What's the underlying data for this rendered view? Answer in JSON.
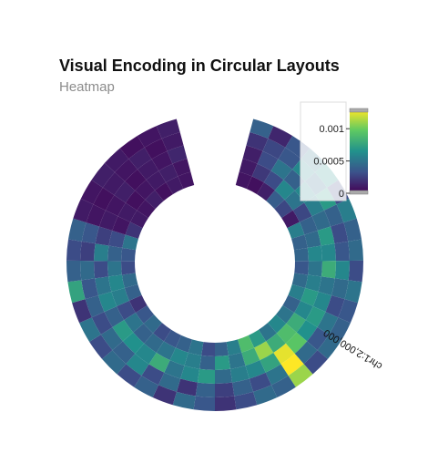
{
  "chart_data": {
    "type": "heatmap",
    "layout": "circular",
    "title": "Visual Encoding in Circular Layouts",
    "subtitle": "Heatmap",
    "axis_label": "chr1:2,000,000",
    "colormap": "viridis",
    "color_range": [
      0,
      0.0013
    ],
    "legend": {
      "placement": "top-right",
      "ticks": [
        {
          "value": 0,
          "label": "0"
        },
        {
          "value": 0.0005,
          "label": "0.0005"
        },
        {
          "value": 0.001,
          "label": "0.001"
        }
      ]
    },
    "start_deg": 15,
    "end_deg": 345,
    "angular_bins": 40,
    "rings": [
      [
        8e-05,
        6e-05,
        0.00012,
        0.00038,
        0.00028,
        0.0001,
        0.00055,
        0.0004,
        0.00042,
        0.00035,
        0.00045,
        0.00055,
        0.0004,
        0.0005,
        0.0006,
        0.0005,
        0.0007,
        0.0009,
        0.00055,
        0.0004,
        0.0003,
        0.0005,
        0.0004,
        0.00035,
        0.0003,
        0.00045,
        0.00035,
        0.0002,
        0.0004,
        0.00045,
        0.0003,
        0.00035,
        0.0005,
        0.0002,
        0.0001,
        8e-05,
        0.00012,
        6e-05,
        0.0001,
        8e-05
      ],
      [
        0.0001,
        0.00022,
        0.0003,
        0.0006,
        0.0005,
        0.00028,
        0.0004,
        0.00045,
        0.0006,
        0.0005,
        0.00055,
        0.0007,
        0.0006,
        0.0008,
        0.0009,
        0.0008,
        0.0011,
        0.0008,
        0.0005,
        0.0007,
        0.0004,
        0.00055,
        0.0006,
        0.0005,
        0.00045,
        0.0004,
        0.0005,
        0.0003,
        0.00055,
        0.0006,
        0.0005,
        0.0004,
        0.0003,
        8e-05,
        0.0001,
        6e-05,
        8e-05,
        0.0001,
        0.00012,
        8e-05
      ],
      [
        0.00012,
        0.0003,
        0.0005,
        0.0004,
        0.0006,
        0.00055,
        0.00045,
        0.0007,
        0.0006,
        0.0008,
        0.0005,
        0.0006,
        0.0007,
        0.00065,
        0.00095,
        0.00125,
        0.00075,
        0.0006,
        0.00055,
        0.00045,
        0.0007,
        0.0006,
        0.0005,
        0.0008,
        0.0006,
        0.00065,
        0.0007,
        0.0004,
        0.0006,
        0.0005,
        0.0003,
        0.00055,
        0.00025,
        0.0001,
        8e-05,
        0.00012,
        6e-05,
        0.0001,
        8e-05,
        0.00015
      ],
      [
        0.0002,
        0.00028,
        0.00035,
        0.0006,
        0.00045,
        0.0007,
        0.0004,
        0.0003,
        0.00035,
        0.0006,
        0.00045,
        0.0003,
        0.0005,
        0.00035,
        0.00045,
        0.0013,
        0.0005,
        0.0003,
        0.0004,
        0.00025,
        0.0004,
        0.0002,
        0.00045,
        0.0003,
        0.0006,
        0.0004,
        0.00045,
        0.0003,
        0.0004,
        0.00035,
        0.00045,
        0.00025,
        0.00035,
        8e-05,
        6e-05,
        0.0001,
        8e-05,
        0.00012,
        6e-05,
        0.0001
      ],
      [
        0.0004,
        0.00015,
        0.00035,
        0.0005,
        0.00065,
        0.0003,
        0.00055,
        0.0004,
        0.00045,
        0.0003,
        0.0005,
        0.00035,
        0.0004,
        0.00045,
        0.0003,
        0.0011,
        0.0004,
        0.00045,
        0.0003,
        0.0002,
        0.00035,
        0.00045,
        0.0002,
        0.0004,
        0.0003,
        0.00045,
        0.0003,
        0.0005,
        0.0002,
        0.00075,
        0.0004,
        0.0003,
        0.0004,
        0.0001,
        8e-05,
        0.00012,
        0.0001,
        6e-05,
        8e-05,
        0.00012
      ]
    ]
  }
}
